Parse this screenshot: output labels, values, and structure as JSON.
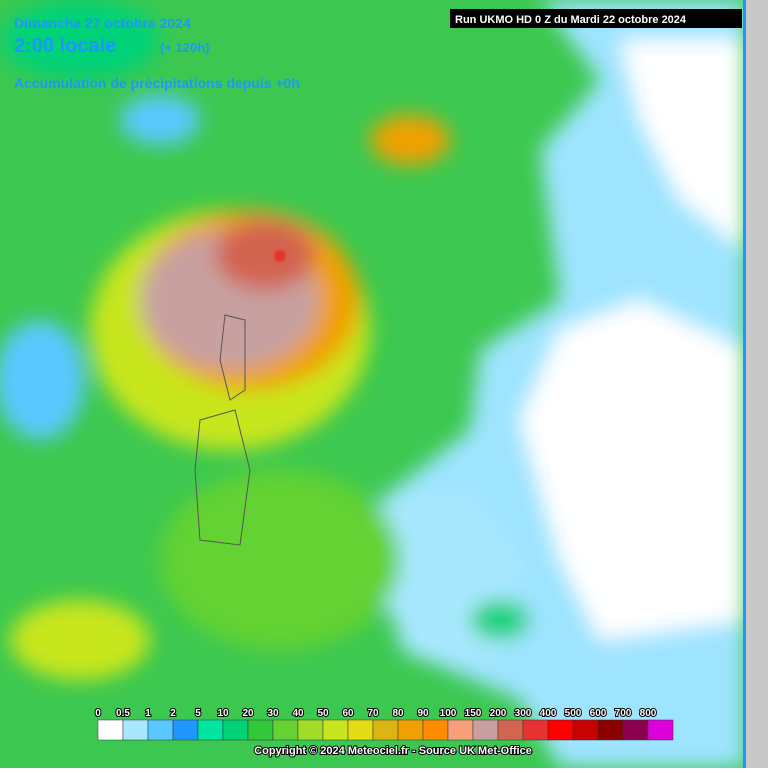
{
  "header": {
    "date": "Dimanche 27 octobre 2024",
    "time": "2:00 locale",
    "lead": "(+ 120h)",
    "product": "Accumulation de précipitations depuis +0h"
  },
  "run": "Run UKMO HD 0 Z du Mardi 22 octobre 2024",
  "legend": {
    "labels": [
      "0",
      "0.5",
      "1",
      "2",
      "5",
      "10",
      "20",
      "30",
      "40",
      "50",
      "60",
      "70",
      "80",
      "90",
      "100",
      "150",
      "200",
      "300",
      "400",
      "500",
      "600",
      "700",
      "800"
    ],
    "colors": [
      "#ffffff",
      "#a8e8ff",
      "#5ac8ff",
      "#1e96ff",
      "#00e6a0",
      "#00d278",
      "#32c83c",
      "#64d232",
      "#a0dc28",
      "#c8e61e",
      "#e6dc14",
      "#dcb414",
      "#f0a000",
      "#ff8c00",
      "#f5a078",
      "#c8a0a0",
      "#d26450",
      "#e63232",
      "#ff0000",
      "#c80000",
      "#8c0000",
      "#8c0050",
      "#dc00dc"
    ]
  },
  "footer": "Copyright © 2024 Meteociel.fr - Source UK Met-Office"
}
